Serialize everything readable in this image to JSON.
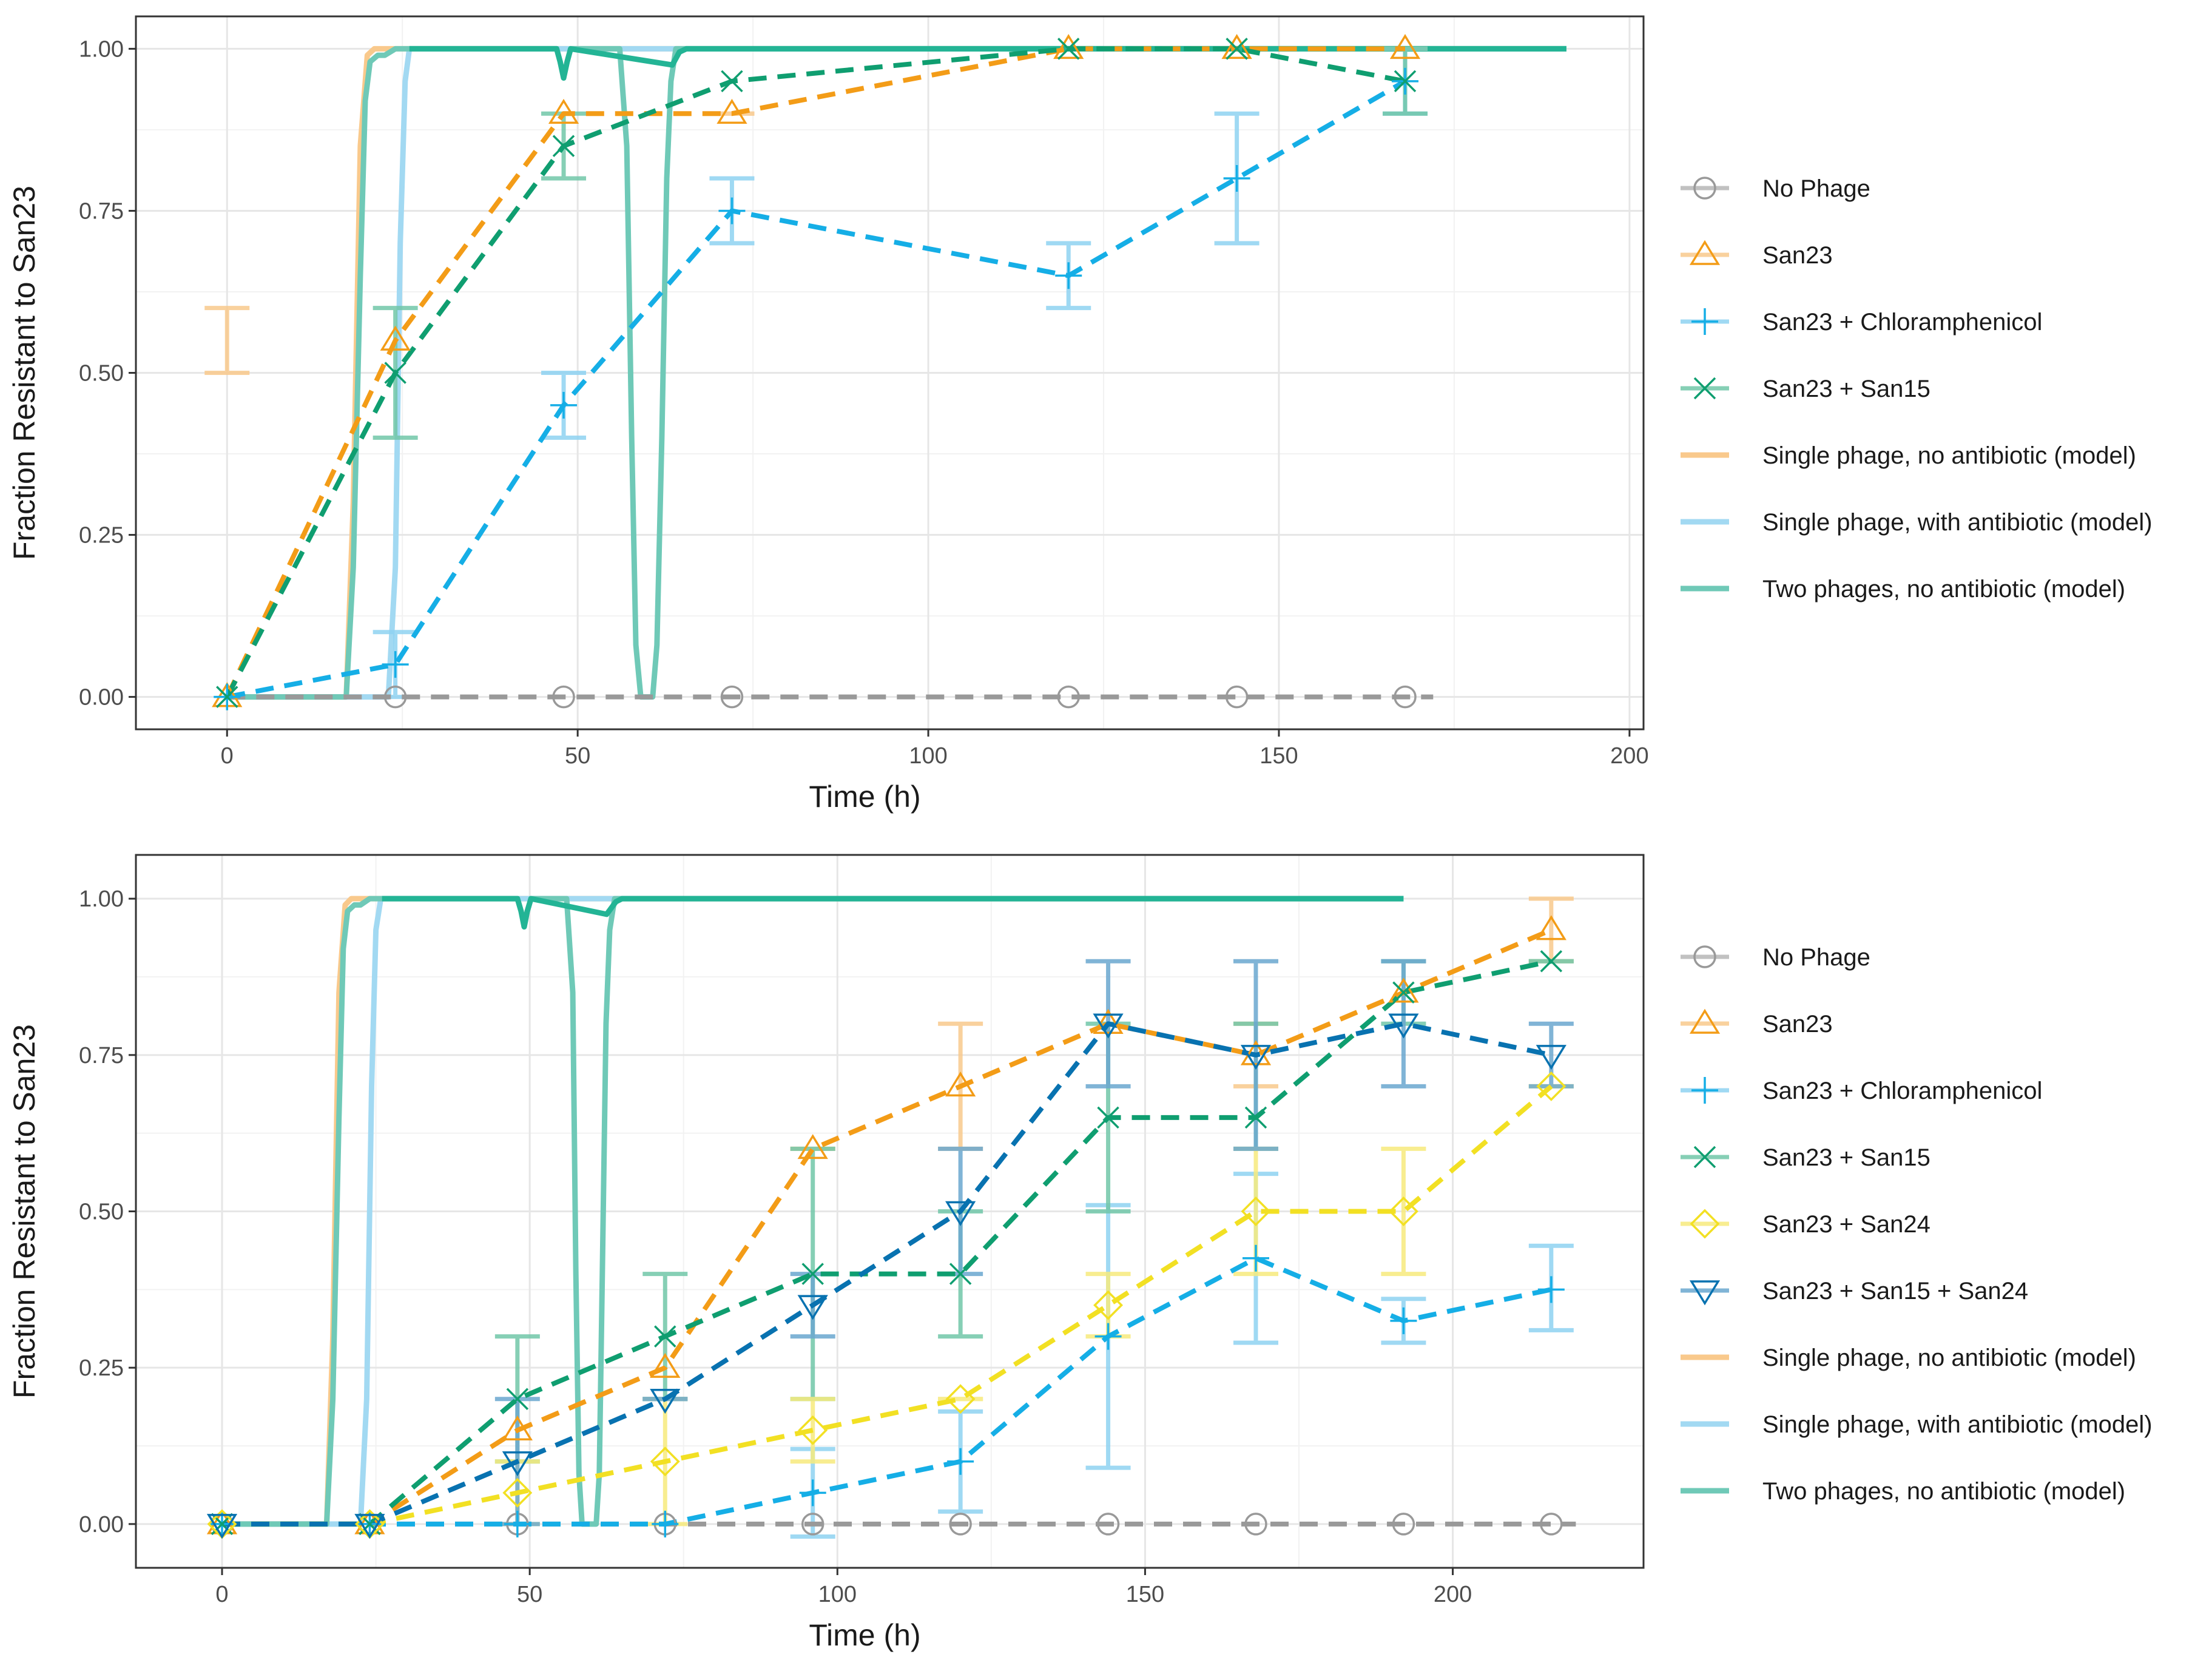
{
  "chart_data": [
    {
      "type": "line",
      "panel": "top",
      "xlabel": "Time (h)",
      "ylabel": "Fraction Resistant to San23",
      "xlim": [
        -13,
        202
      ],
      "ylim": [
        -0.05,
        1.05
      ],
      "xticks": [
        0,
        50,
        100,
        150,
        200
      ],
      "xtick_labels": [
        "0",
        "50",
        "100",
        "150",
        "200"
      ],
      "yticks": [
        0,
        0.25,
        0.5,
        0.75,
        1
      ],
      "ytick_labels": [
        "0.00",
        "0.25",
        "0.50",
        "0.75",
        "1.00"
      ],
      "grid": true,
      "legend_position": "right",
      "legend": [
        {
          "label": "No Phage",
          "series": "nophage"
        },
        {
          "label": "San23",
          "series": "san23"
        },
        {
          "label": "San23 + Chloramphenicol",
          "series": "chlor"
        },
        {
          "label": "San23 + San15",
          "series": "san15"
        },
        {
          "label": "Single phage, no antibiotic (model)",
          "series": "model1"
        },
        {
          "label": "Single phage, with antibiotic (model)",
          "series": "model2"
        },
        {
          "label": "Two phages, no antibiotic (model)",
          "series": "model3"
        }
      ],
      "models": [
        {
          "name": "Single phage, no antibiotic (model)",
          "id": "model1",
          "color": "#F9C98C",
          "x": [
            0,
            17,
            18,
            19,
            20,
            21,
            22,
            191
          ],
          "y": [
            0,
            0,
            0.3,
            0.85,
            0.99,
            1,
            1,
            1
          ]
        },
        {
          "name": "Single phage, with antibiotic (model)",
          "id": "model2",
          "color": "#A2D9F2",
          "x": [
            0,
            23,
            24,
            24.7,
            25.4,
            26,
            27,
            191
          ],
          "y": [
            0,
            0,
            0.2,
            0.7,
            0.95,
            1,
            1,
            1
          ]
        },
        {
          "name": "Two phages, no antibiotic (model)",
          "id": "model3",
          "color": "#6FC9B7",
          "x": [
            0,
            17,
            18,
            19,
            19.7,
            20.4,
            21.5,
            22.5,
            24,
            26,
            47,
            47.5,
            48,
            48.5,
            49,
            49.5,
            50,
            56,
            57,
            57.7,
            58.3,
            59,
            60.7,
            61.3,
            62,
            62.7,
            63.3,
            64,
            65,
            191
          ],
          "y": [
            0,
            0,
            0.2,
            0.65,
            0.92,
            0.98,
            0.99,
            0.99,
            1,
            1,
            1,
            0.98,
            0.955,
            0.98,
            1,
            1,
            1,
            1,
            0.85,
            0.4,
            0.08,
            0,
            0,
            0.08,
            0.4,
            0.8,
            0.95,
            1,
            1,
            1
          ]
        },
        {
          "name": "model overlay",
          "id": "model_top",
          "color": "#23B495",
          "x": [
            26,
            47,
            47.5,
            48,
            48.5,
            49,
            63.5,
            64.5,
            65.5,
            191
          ],
          "y": [
            1,
            1,
            0.98,
            0.955,
            0.98,
            1,
            0.975,
            0.995,
            1,
            1
          ]
        }
      ],
      "series": [
        {
          "name": "No Phage",
          "id": "nophage",
          "color": "#999999",
          "marker": "circle",
          "x": [
            24,
            48,
            72,
            120,
            144,
            168
          ],
          "y": [
            0,
            0,
            0,
            0,
            0,
            0
          ],
          "line_x": [
            0,
            172
          ],
          "line_y": [
            0,
            0
          ]
        },
        {
          "name": "San23",
          "id": "san23",
          "color": "#F39C17",
          "marker": "triangle-up",
          "x": [
            0,
            24,
            48,
            72,
            120,
            144,
            168
          ],
          "y": [
            0,
            0.55,
            0.9,
            0.9,
            1,
            1,
            1
          ],
          "err": [
            [
              0,
              0.5,
              0.6
            ],
            [
              72,
              0.9,
              0.9
            ],
            [
              168,
              1,
              1
            ]
          ],
          "err_color": "#F9C98C"
        },
        {
          "name": "San23 + Chloramphenicol",
          "id": "chlor",
          "color": "#15AEE6",
          "marker": "plus",
          "x": [
            0,
            24,
            48,
            72,
            120,
            144,
            168
          ],
          "y": [
            0,
            0.05,
            0.45,
            0.75,
            0.65,
            0.8,
            0.95
          ],
          "err": [
            [
              24,
              0,
              0.1
            ],
            [
              48,
              0.4,
              0.5
            ],
            [
              72,
              0.7,
              0.8
            ],
            [
              120,
              0.6,
              0.7
            ],
            [
              144,
              0.7,
              0.9
            ],
            [
              168,
              0.9,
              1
            ]
          ],
          "err_color": "#8FD3F2"
        },
        {
          "name": "San23 + San15",
          "id": "san15",
          "color": "#0F9E70",
          "marker": "x",
          "x": [
            0,
            24,
            48,
            72,
            120,
            144,
            168
          ],
          "y": [
            0,
            0.5,
            0.85,
            0.95,
            1,
            1,
            0.95
          ],
          "err": [
            [
              24,
              0.4,
              0.6
            ],
            [
              48,
              0.8,
              0.9
            ],
            [
              168,
              0.9,
              1
            ]
          ],
          "err_color": "#71C7A9"
        }
      ]
    },
    {
      "type": "line",
      "panel": "bottom",
      "xlabel": "Time (h)",
      "ylabel": "Fraction Resistant to San23",
      "xlim": [
        -14,
        231
      ],
      "ylim": [
        -0.07,
        1.07
      ],
      "xticks": [
        0,
        50,
        100,
        150,
        200
      ],
      "xtick_labels": [
        "0",
        "50",
        "100",
        "150",
        "200"
      ],
      "yticks": [
        0,
        0.25,
        0.5,
        0.75,
        1
      ],
      "ytick_labels": [
        "0.00",
        "0.25",
        "0.50",
        "0.75",
        "1.00"
      ],
      "grid": true,
      "legend_position": "right",
      "legend": [
        {
          "label": "No Phage",
          "series": "nophage"
        },
        {
          "label": "San23",
          "series": "san23"
        },
        {
          "label": "San23 + Chloramphenicol",
          "series": "chlor"
        },
        {
          "label": "San23 + San15",
          "series": "san15"
        },
        {
          "label": "San23 + San24",
          "series": "san24"
        },
        {
          "label": "San23 + San15 + San24",
          "series": "triple"
        },
        {
          "label": "Single phage, no antibiotic (model)",
          "series": "model1"
        },
        {
          "label": "Single phage, with antibiotic (model)",
          "series": "model2"
        },
        {
          "label": "Two phages, no antibiotic (model)",
          "series": "model3"
        }
      ],
      "models": [
        {
          "name": "Single phage, no antibiotic (model)",
          "id": "model1",
          "color": "#F9C98C",
          "x": [
            0,
            17,
            18,
            19,
            20,
            21,
            22,
            192
          ],
          "y": [
            0,
            0,
            0.3,
            0.85,
            0.99,
            1,
            1,
            1
          ]
        },
        {
          "name": "Single phage, with antibiotic (model)",
          "id": "model2",
          "color": "#A2D9F2",
          "x": [
            0,
            22.5,
            23.5,
            24.3,
            25,
            25.8,
            27,
            192
          ],
          "y": [
            0,
            0,
            0.2,
            0.7,
            0.95,
            1,
            1,
            1
          ]
        },
        {
          "name": "Two phages, no antibiotic (model)",
          "id": "model3",
          "color": "#6FC9B7",
          "x": [
            0,
            17,
            18,
            19,
            19.7,
            20.4,
            21.5,
            22.5,
            24,
            26,
            48,
            48.6,
            49.1,
            49.6,
            50.2,
            56,
            57,
            57.5,
            58,
            58.5,
            59,
            60.8,
            61.3,
            61.8,
            62.4,
            63,
            63.8,
            65,
            192
          ],
          "y": [
            0,
            0,
            0.2,
            0.65,
            0.92,
            0.98,
            0.99,
            0.99,
            1,
            1,
            1,
            0.98,
            0.955,
            0.98,
            1,
            1,
            0.85,
            0.4,
            0.08,
            0,
            0,
            0,
            0.08,
            0.4,
            0.8,
            0.95,
            1,
            1,
            1
          ]
        },
        {
          "name": "model overlay",
          "id": "model_top",
          "color": "#23B495",
          "x": [
            26,
            48,
            48.6,
            49.1,
            49.6,
            50.2,
            62.5,
            64,
            65,
            192
          ],
          "y": [
            1,
            1,
            0.98,
            0.955,
            0.98,
            1,
            0.975,
            0.995,
            1,
            1
          ]
        }
      ],
      "series": [
        {
          "name": "No Phage",
          "id": "nophage",
          "color": "#999999",
          "marker": "circle",
          "x": [
            0,
            24,
            48,
            72,
            96,
            120,
            144,
            168,
            192,
            216
          ],
          "y": [
            0,
            0,
            0,
            0,
            0,
            0,
            0,
            0,
            0,
            0
          ],
          "line_x": [
            0,
            220
          ],
          "line_y": [
            0,
            0
          ]
        },
        {
          "name": "San23",
          "id": "san23",
          "color": "#F39C17",
          "marker": "triangle-up",
          "x": [
            0,
            24,
            48,
            72,
            96,
            120,
            144,
            168,
            192,
            216
          ],
          "y": [
            0,
            0,
            0.15,
            0.25,
            0.6,
            0.7,
            0.8,
            0.75,
            0.85,
            0.95
          ],
          "err": [
            [
              96,
              0.6,
              0.6
            ],
            [
              120,
              0.6,
              0.8
            ],
            [
              168,
              0.7,
              0.8
            ],
            [
              216,
              0.9,
              1
            ]
          ],
          "err_color": "#F9C98C"
        },
        {
          "name": "San23 + Chloramphenicol",
          "id": "chlor",
          "color": "#15AEE6",
          "marker": "plus",
          "x": [
            0,
            24,
            48,
            72,
            96,
            120,
            144,
            168,
            192,
            216
          ],
          "y": [
            0,
            0,
            0,
            0,
            0.05,
            0.1,
            0.3,
            0.425,
            0.325,
            0.375
          ],
          "err": [
            [
              96,
              -0.02,
              0.12
            ],
            [
              120,
              0.02,
              0.18
            ],
            [
              144,
              0.09,
              0.51
            ],
            [
              168,
              0.29,
              0.56
            ],
            [
              192,
              0.29,
              0.36
            ],
            [
              216,
              0.31,
              0.445
            ]
          ],
          "err_color": "#8FD3F2"
        },
        {
          "name": "San23 + San15",
          "id": "san15",
          "color": "#0F9E70",
          "marker": "x",
          "x": [
            0,
            24,
            48,
            72,
            96,
            120,
            144,
            168,
            192,
            216
          ],
          "y": [
            0,
            0,
            0.2,
            0.3,
            0.4,
            0.4,
            0.65,
            0.65,
            0.85,
            0.9
          ],
          "err": [
            [
              48,
              0.1,
              0.3
            ],
            [
              72,
              0.2,
              0.4
            ],
            [
              96,
              0.2,
              0.6
            ],
            [
              120,
              0.3,
              0.5
            ],
            [
              144,
              0.5,
              0.8
            ],
            [
              168,
              0.6,
              0.8
            ],
            [
              192,
              0.8,
              0.9
            ],
            [
              216,
              0.9,
              0.9
            ]
          ],
          "err_color": "#71C7A9"
        },
        {
          "name": "San23 + San24",
          "id": "san24",
          "color": "#F2E023",
          "marker": "diamond",
          "x": [
            0,
            24,
            48,
            72,
            96,
            120,
            144,
            168,
            192,
            216
          ],
          "y": [
            0,
            0,
            0.05,
            0.1,
            0.15,
            0.2,
            0.35,
            0.5,
            0.5,
            0.7
          ],
          "err": [
            [
              48,
              0,
              0.1
            ],
            [
              72,
              0,
              0.2
            ],
            [
              96,
              0.1,
              0.2
            ],
            [
              120,
              0.2,
              0.2
            ],
            [
              144,
              0.3,
              0.4
            ],
            [
              168,
              0.4,
              0.6
            ],
            [
              192,
              0.4,
              0.6
            ],
            [
              216,
              0.7,
              0.7
            ]
          ],
          "err_color": "#F7EB7D"
        },
        {
          "name": "San23 + San15 + San24",
          "id": "triple",
          "color": "#0872B0",
          "marker": "triangle-down",
          "x": [
            0,
            24,
            48,
            72,
            96,
            120,
            144,
            168,
            192,
            216
          ],
          "y": [
            0,
            0,
            0.1,
            0.2,
            0.35,
            0.5,
            0.8,
            0.75,
            0.8,
            0.75
          ],
          "err": [
            [
              48,
              0,
              0.2
            ],
            [
              72,
              0.2,
              0.2
            ],
            [
              96,
              0.3,
              0.4
            ],
            [
              120,
              0.4,
              0.6
            ],
            [
              144,
              0.7,
              0.9
            ],
            [
              168,
              0.6,
              0.9
            ],
            [
              192,
              0.7,
              0.9
            ],
            [
              216,
              0.7,
              0.8
            ]
          ],
          "err_color": "#6BA8D0"
        }
      ]
    }
  ]
}
